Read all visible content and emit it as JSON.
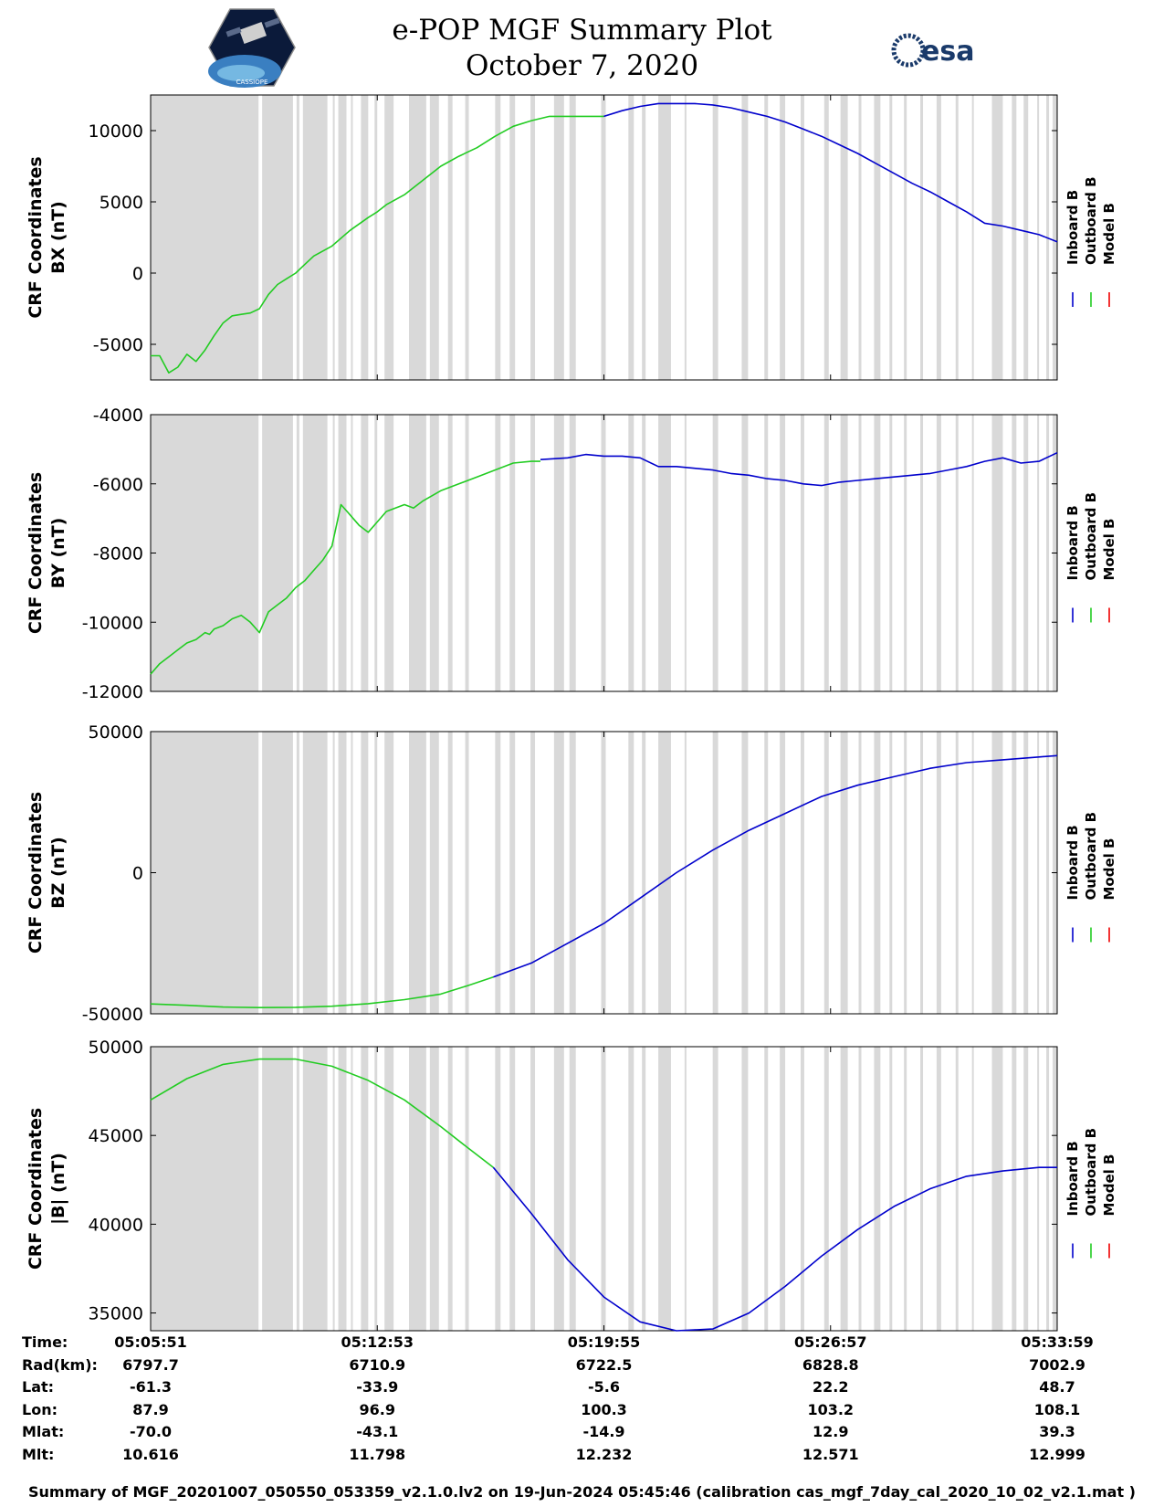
{
  "title": {
    "line1": "e-POP MGF Summary Plot",
    "line2": "October 7, 2020"
  },
  "logos": {
    "left": {
      "name": "cassiope-logo",
      "text": "CASSIOPE"
    },
    "right": {
      "name": "esa-logo",
      "text": "esa"
    }
  },
  "legend": {
    "entries": [
      {
        "label": "Inboard B",
        "color": "#0000cc"
      },
      {
        "label": "Outboard B",
        "color": "#22cc22"
      },
      {
        "label": "Model B",
        "color": "#ee0000"
      }
    ]
  },
  "gap_color": "#d9d9d9",
  "gaps": [
    [
      0,
      0.119
    ],
    [
      0.123,
      0.157
    ],
    [
      0.161,
      0.164
    ],
    [
      0.168,
      0.195
    ],
    [
      0.201,
      0.203
    ],
    [
      0.207,
      0.216
    ],
    [
      0.221,
      0.223
    ],
    [
      0.232,
      0.24
    ],
    [
      0.247,
      0.25
    ],
    [
      0.258,
      0.268
    ],
    [
      0.285,
      0.304
    ],
    [
      0.308,
      0.318
    ],
    [
      0.328,
      0.333
    ],
    [
      0.347,
      0.351
    ],
    [
      0.38,
      0.386
    ],
    [
      0.396,
      0.402
    ],
    [
      0.419,
      0.424
    ],
    [
      0.445,
      0.456
    ],
    [
      0.462,
      0.469
    ],
    [
      0.497,
      0.502
    ],
    [
      0.527,
      0.533
    ],
    [
      0.542,
      0.546
    ],
    [
      0.56,
      0.574
    ],
    [
      0.589,
      0.591
    ],
    [
      0.62,
      0.626
    ],
    [
      0.652,
      0.659
    ],
    [
      0.677,
      0.681
    ],
    [
      0.694,
      0.7
    ],
    [
      0.717,
      0.721
    ],
    [
      0.743,
      0.748
    ],
    [
      0.761,
      0.769
    ],
    [
      0.781,
      0.784
    ],
    [
      0.798,
      0.805
    ],
    [
      0.815,
      0.818
    ],
    [
      0.831,
      0.834
    ],
    [
      0.849,
      0.852
    ],
    [
      0.867,
      0.872
    ],
    [
      0.888,
      0.891
    ],
    [
      0.906,
      0.908
    ],
    [
      0.928,
      0.94
    ],
    [
      0.95,
      0.955
    ],
    [
      0.963,
      0.968
    ],
    [
      0.978,
      0.98
    ],
    [
      0.988,
      0.991
    ],
    [
      0.995,
      1.0
    ]
  ],
  "chart_data": [
    {
      "type": "line",
      "name": "BX",
      "ylabel_line1": "CRF Coordinates",
      "ylabel_line2": "BX (nT)",
      "ylim": [
        -7500,
        12500
      ],
      "yticks": [
        -5000,
        0,
        5000,
        10000
      ],
      "ytick_labels": [
        "-5000",
        "0",
        "5000",
        "10000"
      ],
      "switch": 0.5,
      "series": [
        {
          "name": "Outboard B",
          "x": [
            0,
            0.01,
            0.02,
            0.03,
            0.04,
            0.05,
            0.06,
            0.07,
            0.08,
            0.09,
            0.1,
            0.11,
            0.12,
            0.13,
            0.14,
            0.15,
            0.16,
            0.17,
            0.18,
            0.2,
            0.22,
            0.24,
            0.25,
            0.26,
            0.28,
            0.3,
            0.32,
            0.34,
            0.36,
            0.38,
            0.4,
            0.42,
            0.44,
            0.46,
            0.48,
            0.5
          ],
          "y": [
            -5800,
            -5800,
            -7000,
            -6600,
            -5700,
            -6200,
            -5400,
            -4400,
            -3500,
            -3000,
            -2900,
            -2800,
            -2500,
            -1500,
            -800,
            -400,
            0,
            600,
            1200,
            1900,
            3000,
            3900,
            4300,
            4800,
            5500,
            6500,
            7500,
            8200,
            8800,
            9600,
            10300,
            10700,
            11000,
            11000,
            11000,
            11000
          ]
        },
        {
          "name": "Inboard B",
          "x": [
            0.5,
            0.52,
            0.54,
            0.56,
            0.58,
            0.6,
            0.62,
            0.64,
            0.66,
            0.68,
            0.7,
            0.72,
            0.74,
            0.76,
            0.78,
            0.8,
            0.82,
            0.84,
            0.86,
            0.88,
            0.9,
            0.92,
            0.94,
            0.96,
            0.98,
            1.0
          ],
          "y": [
            11000,
            11400,
            11700,
            11900,
            11900,
            11900,
            11800,
            11600,
            11300,
            11000,
            10600,
            10100,
            9600,
            9000,
            8400,
            7700,
            7000,
            6300,
            5700,
            5000,
            4300,
            3500,
            3300,
            3000,
            2700,
            2200
          ]
        },
        {
          "name": "Model B",
          "x": [],
          "y": []
        }
      ]
    },
    {
      "type": "line",
      "name": "BY",
      "ylabel_line1": "CRF Coordinates",
      "ylabel_line2": "BY (nT)",
      "ylim": [
        -12000,
        -4000
      ],
      "yticks": [
        -12000,
        -10000,
        -8000,
        -6000,
        -4000
      ],
      "ytick_labels": [
        "-12000",
        "-10000",
        "-8000",
        "-6000",
        "-4000"
      ],
      "switch": 0.43,
      "series": [
        {
          "name": "Outboard B",
          "x": [
            0,
            0.01,
            0.02,
            0.03,
            0.04,
            0.05,
            0.06,
            0.065,
            0.07,
            0.08,
            0.09,
            0.1,
            0.11,
            0.12,
            0.13,
            0.14,
            0.15,
            0.16,
            0.17,
            0.18,
            0.19,
            0.2,
            0.21,
            0.22,
            0.23,
            0.24,
            0.25,
            0.26,
            0.27,
            0.28,
            0.29,
            0.3,
            0.32,
            0.34,
            0.36,
            0.38,
            0.4,
            0.42,
            0.43
          ],
          "y": [
            -11500,
            -11200,
            -11000,
            -10800,
            -10600,
            -10500,
            -10300,
            -10350,
            -10200,
            -10100,
            -9900,
            -9800,
            -10000,
            -10300,
            -9700,
            -9500,
            -9300,
            -9000,
            -8800,
            -8500,
            -8200,
            -7800,
            -6600,
            -6900,
            -7200,
            -7400,
            -7100,
            -6800,
            -6700,
            -6600,
            -6700,
            -6500,
            -6200,
            -6000,
            -5800,
            -5600,
            -5400,
            -5350,
            -5350
          ]
        },
        {
          "name": "Inboard B",
          "x": [
            0.43,
            0.46,
            0.48,
            0.5,
            0.52,
            0.54,
            0.56,
            0.58,
            0.6,
            0.62,
            0.64,
            0.66,
            0.68,
            0.7,
            0.72,
            0.74,
            0.76,
            0.78,
            0.8,
            0.82,
            0.84,
            0.86,
            0.88,
            0.9,
            0.92,
            0.94,
            0.96,
            0.98,
            1.0
          ],
          "y": [
            -5300,
            -5250,
            -5150,
            -5200,
            -5200,
            -5250,
            -5500,
            -5500,
            -5550,
            -5600,
            -5700,
            -5750,
            -5850,
            -5900,
            -6000,
            -6050,
            -5950,
            -5900,
            -5850,
            -5800,
            -5750,
            -5700,
            -5600,
            -5500,
            -5350,
            -5250,
            -5400,
            -5350,
            -5100
          ]
        },
        {
          "name": "Model B",
          "x": [],
          "y": []
        }
      ]
    },
    {
      "type": "line",
      "name": "BZ",
      "ylabel_line1": "CRF Coordinates",
      "ylabel_line2": "BZ (nT)",
      "ylim": [
        -50000,
        50000
      ],
      "yticks": [
        -50000,
        0,
        50000
      ],
      "ytick_labels": [
        "-50000",
        "0",
        "50000"
      ],
      "switch": 0.378,
      "series": [
        {
          "name": "Outboard B",
          "x": [
            0,
            0.04,
            0.08,
            0.12,
            0.16,
            0.2,
            0.24,
            0.28,
            0.32,
            0.35,
            0.378
          ],
          "y": [
            -46500,
            -47000,
            -47600,
            -47800,
            -47700,
            -47300,
            -46400,
            -45000,
            -43000,
            -40000,
            -37000
          ]
        },
        {
          "name": "Inboard B",
          "x": [
            0.378,
            0.42,
            0.46,
            0.5,
            0.54,
            0.58,
            0.62,
            0.66,
            0.7,
            0.74,
            0.78,
            0.82,
            0.86,
            0.9,
            0.94,
            0.98,
            1.0
          ],
          "y": [
            -37000,
            -32000,
            -25000,
            -18000,
            -9000,
            0,
            8000,
            15000,
            21000,
            27000,
            31000,
            34000,
            37000,
            39000,
            40000,
            41000,
            41500
          ]
        },
        {
          "name": "Model B",
          "x": [],
          "y": []
        }
      ]
    },
    {
      "type": "line",
      "name": "B magnitude",
      "ylabel_line1": "CRF Coordinates",
      "ylabel_line2": "|B| (nT)",
      "ylim": [
        34000,
        50000
      ],
      "yticks": [
        35000,
        40000,
        45000,
        50000
      ],
      "ytick_labels": [
        "35000",
        "40000",
        "45000",
        "50000"
      ],
      "switch": 0.378,
      "series": [
        {
          "name": "Outboard B",
          "x": [
            0,
            0.04,
            0.08,
            0.12,
            0.16,
            0.2,
            0.24,
            0.28,
            0.32,
            0.35,
            0.378
          ],
          "y": [
            47000,
            48200,
            49000,
            49300,
            49300,
            48900,
            48100,
            47000,
            45500,
            44300,
            43200
          ]
        },
        {
          "name": "Inboard B",
          "x": [
            0.378,
            0.42,
            0.46,
            0.5,
            0.54,
            0.58,
            0.62,
            0.66,
            0.7,
            0.74,
            0.78,
            0.82,
            0.86,
            0.9,
            0.94,
            0.98,
            1.0
          ],
          "y": [
            43200,
            40600,
            38000,
            35900,
            34500,
            34000,
            34100,
            35000,
            36500,
            38200,
            39700,
            41000,
            42000,
            42700,
            43000,
            43200,
            43200
          ]
        },
        {
          "name": "Model B",
          "x": [],
          "y": []
        }
      ]
    }
  ],
  "info_table": {
    "rows": [
      {
        "label": "Time:",
        "values": [
          "05:05:51",
          "05:12:53",
          "05:19:55",
          "05:26:57",
          "05:33:59"
        ]
      },
      {
        "label": "Rad(km):",
        "values": [
          "6797.7",
          "6710.9",
          "6722.5",
          "6828.8",
          "7002.9"
        ]
      },
      {
        "label": "Lat:",
        "values": [
          "-61.3",
          "-33.9",
          "-5.6",
          "22.2",
          "48.7"
        ]
      },
      {
        "label": "Lon:",
        "values": [
          "87.9",
          "96.9",
          "100.3",
          "103.2",
          "108.1"
        ]
      },
      {
        "label": "Mlat:",
        "values": [
          "-70.0",
          "-43.1",
          "-14.9",
          "12.9",
          "39.3"
        ]
      },
      {
        "label": "Mlt:",
        "values": [
          "10.616",
          "11.798",
          "12.232",
          "12.571",
          "12.999"
        ]
      }
    ]
  },
  "footer": "Summary of MGF_20201007_050550_053359_v2.1.0.lv2 on 19-Jun-2024 05:45:46 (calibration cas_mgf_7day_cal_2020_10_02_v2.1.mat )"
}
